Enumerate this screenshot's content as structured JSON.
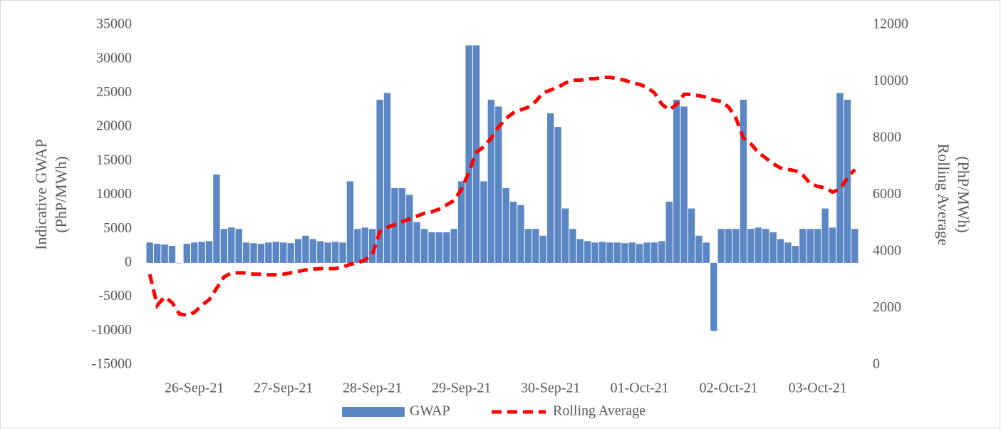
{
  "chart_data": {
    "type": "bar-line",
    "ylabel": [
      "Indicative GWAP",
      "(PhP/MWh)"
    ],
    "y2label": [
      "Rolling Average",
      "(PhP/MWh)"
    ],
    "categories": [
      null,
      null,
      null,
      null,
      null,
      null,
      "26-Sep-21",
      null,
      null,
      null,
      null,
      null,
      null,
      null,
      null,
      null,
      null,
      null,
      "27-Sep-21",
      null,
      null,
      null,
      null,
      null,
      null,
      null,
      null,
      null,
      null,
      null,
      "28-Sep-21",
      null,
      null,
      null,
      null,
      null,
      null,
      null,
      null,
      null,
      null,
      null,
      "29-Sep-21",
      null,
      null,
      null,
      null,
      null,
      null,
      null,
      null,
      null,
      null,
      null,
      "30-Sep-21",
      null,
      null,
      null,
      null,
      null,
      null,
      null,
      null,
      null,
      null,
      null,
      "01-Oct-21",
      null,
      null,
      null,
      null,
      null,
      null,
      null,
      null,
      null,
      null,
      null,
      "02-Oct-21",
      null,
      null,
      null,
      null,
      null,
      null,
      null,
      null,
      null,
      null,
      null,
      "03-Oct-21",
      null,
      null,
      null,
      null,
      null
    ],
    "series": [
      {
        "name": "GWAP",
        "type": "bar",
        "color": "#5b87c5",
        "axis": "y",
        "values": [
          3000,
          2800,
          2700,
          2500,
          0,
          2800,
          3000,
          3100,
          3200,
          13000,
          5000,
          5200,
          5000,
          3000,
          2900,
          2800,
          3000,
          3100,
          3000,
          2900,
          3500,
          4000,
          3500,
          3200,
          3000,
          3100,
          3000,
          12000,
          5000,
          5200,
          5000,
          24000,
          25000,
          11000,
          11000,
          10000,
          6000,
          5000,
          4500,
          4500,
          4500,
          5000,
          12000,
          32000,
          32000,
          12000,
          24000,
          23000,
          11000,
          9000,
          8500,
          5000,
          5000,
          4000,
          22000,
          20000,
          8000,
          5000,
          3500,
          3200,
          3000,
          3100,
          3000,
          3000,
          2900,
          3000,
          2800,
          3000,
          3000,
          3200,
          9000,
          24000,
          23000,
          8000,
          4000,
          3000,
          -10000,
          5000,
          5000,
          5000,
          24000,
          5000,
          5200,
          5000,
          4500,
          3500,
          3000,
          2500,
          5000,
          5000,
          5000,
          8000,
          5200,
          25000,
          24000,
          5000
        ]
      },
      {
        "name": "Rolling Average",
        "type": "line",
        "color": "#ff0000",
        "axis": "y2",
        "values": [
          3200,
          2100,
          2400,
          2200,
          1800,
          1750,
          1850,
          2100,
          2300,
          2700,
          3100,
          3250,
          3250,
          3250,
          3200,
          3200,
          3180,
          3180,
          3200,
          3250,
          3300,
          3350,
          3380,
          3400,
          3400,
          3400,
          3450,
          3550,
          3600,
          3700,
          3900,
          4700,
          4850,
          4950,
          5050,
          5150,
          5250,
          5350,
          5400,
          5500,
          5650,
          5800,
          6200,
          6800,
          7500,
          7700,
          8000,
          8400,
          8700,
          8900,
          9000,
          9100,
          9300,
          9600,
          9700,
          9800,
          9950,
          10050,
          10050,
          10100,
          10100,
          10150,
          10150,
          10100,
          10050,
          9950,
          9900,
          9800,
          9600,
          9200,
          9000,
          9200,
          9550,
          9550,
          9500,
          9450,
          9350,
          9300,
          9100,
          8700,
          8000,
          7800,
          7500,
          7300,
          7100,
          6950,
          6900,
          6850,
          6700,
          6400,
          6300,
          6250,
          6100,
          6200,
          6600,
          6900
        ]
      }
    ],
    "ylim": [
      -15000,
      35000
    ],
    "yticks": [
      -15000,
      -10000,
      -5000,
      0,
      5000,
      10000,
      15000,
      20000,
      25000,
      30000,
      35000
    ],
    "y2lim": [
      0,
      12000
    ],
    "y2ticks": [
      0,
      2000,
      4000,
      6000,
      8000,
      10000,
      12000
    ],
    "legend": "bottom"
  }
}
